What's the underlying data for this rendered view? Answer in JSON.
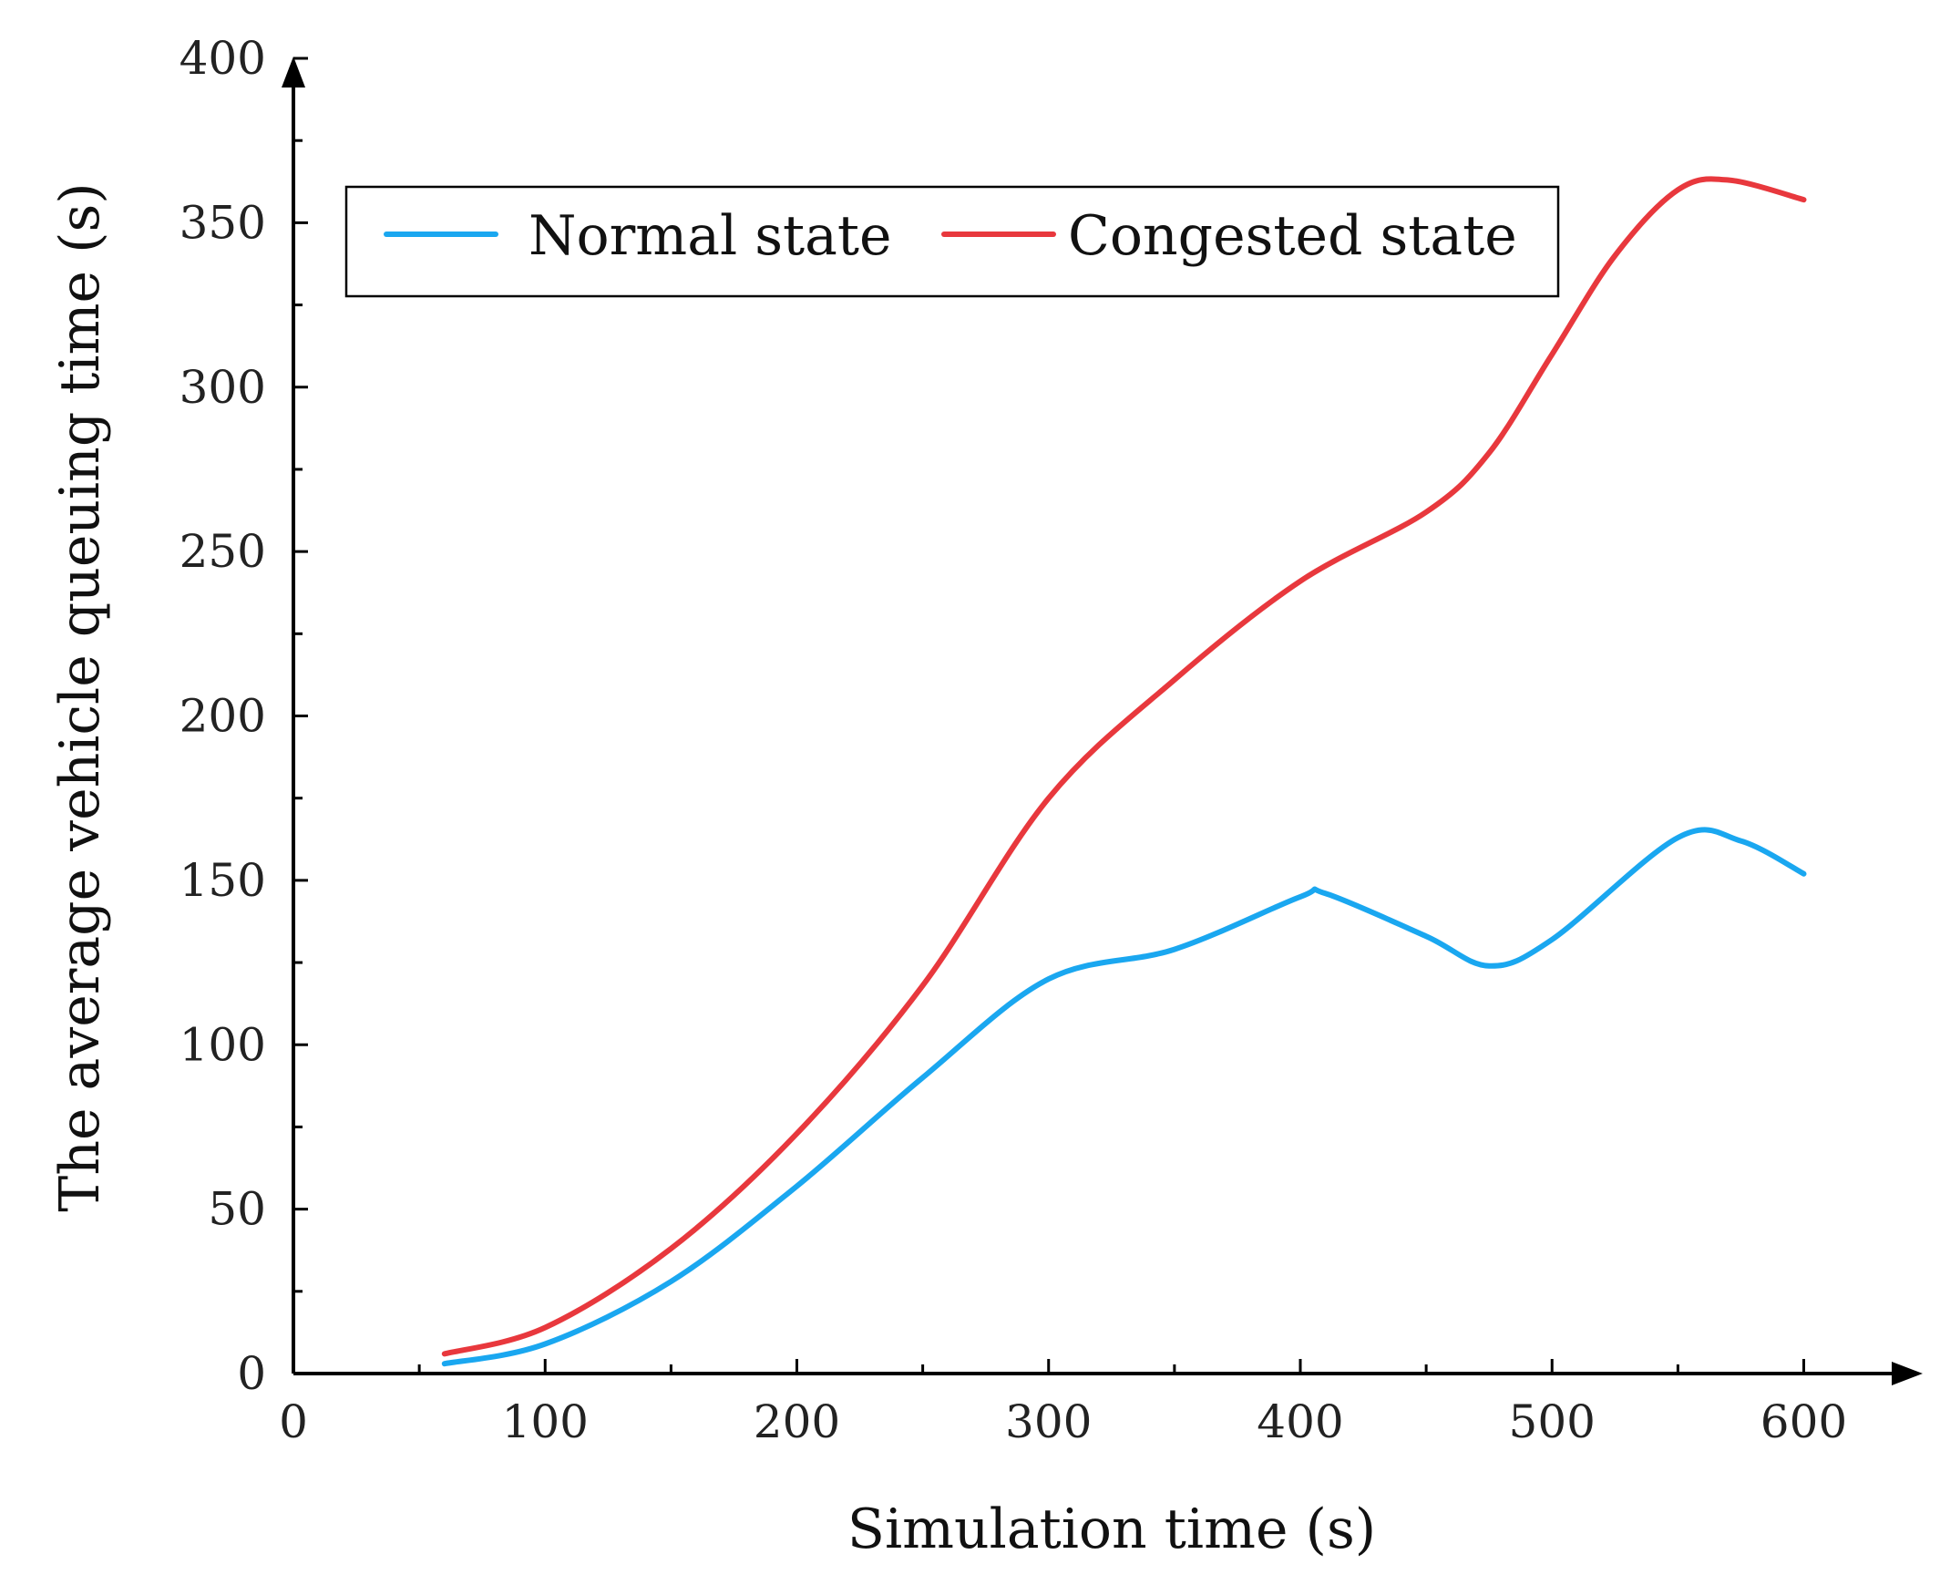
{
  "chart_data": {
    "type": "line",
    "xlabel": "Simulation time (s)",
    "ylabel": "The average vehicle queuing time (s)",
    "xlim": [
      0,
      650
    ],
    "ylim": [
      0,
      400
    ],
    "xticks": [
      0,
      100,
      200,
      300,
      400,
      500,
      600
    ],
    "yticks": [
      0,
      50,
      100,
      150,
      200,
      250,
      300,
      350,
      400
    ],
    "x_minor_step": 50,
    "y_minor_step": 25,
    "grid": false,
    "legend_position": "top-center, boxed, horizontal",
    "series": [
      {
        "name": "Normal state",
        "color": "#1aa7f0",
        "x": [
          60,
          100,
          150,
          200,
          250,
          300,
          350,
          400,
          410,
          450,
          475,
          500,
          550,
          575,
          600
        ],
        "y": [
          3,
          9,
          28,
          57,
          90,
          120,
          129,
          145,
          146,
          133,
          124,
          132,
          163,
          162,
          152
        ]
      },
      {
        "name": "Congested state",
        "color": "#e8383d",
        "x": [
          60,
          100,
          150,
          200,
          250,
          300,
          350,
          400,
          450,
          475,
          500,
          525,
          550,
          570,
          600
        ],
        "y": [
          6,
          14,
          38,
          73,
          118,
          175,
          211,
          241,
          262,
          280,
          310,
          340,
          360,
          363,
          357
        ]
      }
    ]
  }
}
